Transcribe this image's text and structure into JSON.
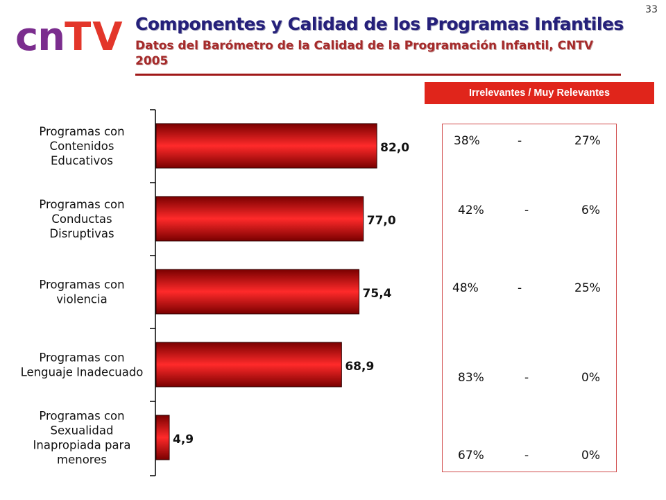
{
  "page_number": "33",
  "logo": {
    "cn": "cn",
    "tv": "TV"
  },
  "title": "Componentes y Calidad de los Programas Infantiles",
  "subtitle": "Datos del Barómetro de la Calidad de la Programación Infantil, CNTV 2005",
  "header_box": "Irrelevantes / Muy Relevantes",
  "colors": {
    "bar_dark": "#7a0000",
    "bar_light": "#ff2a2a",
    "accent": "#e0251b",
    "title": "#25207a"
  },
  "chart_data": {
    "type": "bar",
    "orientation": "horizontal",
    "categories": [
      [
        "Programas con",
        "Contenidos",
        "Educativos"
      ],
      [
        "Programas con",
        "Conductas",
        "Disruptivas"
      ],
      [
        "Programas con",
        "violencia"
      ],
      [
        "Programas con",
        "Lenguaje Inadecuado"
      ],
      [
        "Programas con",
        "Sexualidad",
        "Inapropiada para",
        "menores"
      ]
    ],
    "values": [
      82.0,
      77.0,
      75.4,
      68.9,
      4.9
    ],
    "data_labels": [
      "82,0",
      "77,0",
      "75,4",
      "68,9",
      "4,9"
    ],
    "xlim": [
      0,
      100
    ],
    "grid": false,
    "legend": "none"
  },
  "percentages": [
    {
      "irrelevantes": "38%",
      "sep": "-",
      "muy_relevantes": "27%"
    },
    {
      "irrelevantes": "42%",
      "sep": "-",
      "muy_relevantes": "6%"
    },
    {
      "irrelevantes": "48%",
      "sep": "-",
      "muy_relevantes": "25%"
    },
    {
      "irrelevantes": "83%",
      "sep": "-",
      "muy_relevantes": "0%"
    },
    {
      "irrelevantes": "67%",
      "sep": "-",
      "muy_relevantes": "0%"
    }
  ]
}
